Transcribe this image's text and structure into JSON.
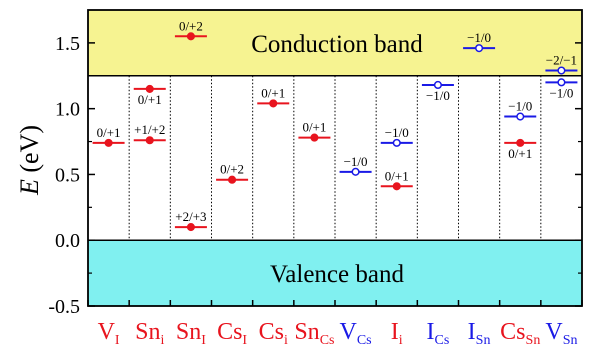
{
  "chart_data": {
    "type": "scatter",
    "ylabel": "E (eV)",
    "ylim": [
      -0.5,
      1.75
    ],
    "yticks": [
      -0.5,
      0.0,
      0.5,
      1.0,
      1.5
    ],
    "bands": {
      "conduction": {
        "label": "Conduction band",
        "min": 1.25,
        "max": 1.75,
        "color": "#f6f391"
      },
      "valence": {
        "label": "Valence band",
        "min": -0.5,
        "max": 0.0,
        "color": "#80f0f0"
      }
    },
    "colors": {
      "acceptor_like": "#e8141e",
      "donor_like": "#1a1ae6"
    },
    "defects": [
      {
        "label": "V",
        "sub": "I",
        "color": "red",
        "levels": [
          {
            "y": 0.74,
            "text": "0/+1",
            "pos": "above",
            "fill": true
          }
        ]
      },
      {
        "label": "Sn",
        "sub": "i",
        "color": "red",
        "levels": [
          {
            "y": 1.15,
            "text": "0/+1",
            "pos": "below",
            "fill": true
          },
          {
            "y": 0.76,
            "text": "+1/+2",
            "pos": "above",
            "fill": true
          }
        ]
      },
      {
        "label": "Sn",
        "sub": "I",
        "color": "red",
        "levels": [
          {
            "y": 1.55,
            "text": "0/+2",
            "pos": "above",
            "fill": true
          },
          {
            "y": 0.1,
            "text": "+2/+3",
            "pos": "above",
            "fill": true
          }
        ]
      },
      {
        "label": "Cs",
        "sub": "I",
        "color": "red",
        "levels": [
          {
            "y": 0.46,
            "text": "0/+2",
            "pos": "above",
            "fill": true
          }
        ]
      },
      {
        "label": "Cs",
        "sub": "i",
        "color": "red",
        "levels": [
          {
            "y": 1.04,
            "text": "0/+1",
            "pos": "above",
            "fill": true
          }
        ]
      },
      {
        "label": "Sn",
        "sub": "Cs",
        "color": "red",
        "levels": [
          {
            "y": 0.78,
            "text": "0/+1",
            "pos": "above",
            "fill": true
          }
        ]
      },
      {
        "label": "V",
        "sub": "Cs",
        "color": "blue",
        "levels": [
          {
            "y": 0.52,
            "text": "−1/0",
            "pos": "above",
            "fill": false
          }
        ]
      },
      {
        "label": "I",
        "sub": "i",
        "color": "red",
        "levels": [
          {
            "y": 0.74,
            "text": "−1/0",
            "pos": "above",
            "fill": false,
            "series": "blue"
          },
          {
            "y": 0.41,
            "text": "0/+1",
            "pos": "above",
            "fill": true
          }
        ]
      },
      {
        "label": "I",
        "sub": "Cs",
        "color": "blue",
        "levels": [
          {
            "y": 1.18,
            "text": "−1/0",
            "pos": "below",
            "fill": false
          }
        ]
      },
      {
        "label": "I",
        "sub": "Sn",
        "color": "blue",
        "levels": [
          {
            "y": 1.46,
            "text": "−1/0",
            "pos": "above",
            "fill": false
          }
        ]
      },
      {
        "label": "Cs",
        "sub": "Sn",
        "color": "red",
        "levels": [
          {
            "y": 0.94,
            "text": "−1/0",
            "pos": "above",
            "fill": false,
            "series": "blue"
          },
          {
            "y": 0.74,
            "text": "0/+1",
            "pos": "below",
            "fill": true
          }
        ]
      },
      {
        "label": "V",
        "sub": "Sn",
        "color": "blue",
        "levels": [
          {
            "y": 1.29,
            "text": "−2/−1",
            "pos": "above",
            "fill": false
          },
          {
            "y": 1.2,
            "text": "−1/0",
            "pos": "below",
            "fill": false
          }
        ]
      }
    ]
  }
}
